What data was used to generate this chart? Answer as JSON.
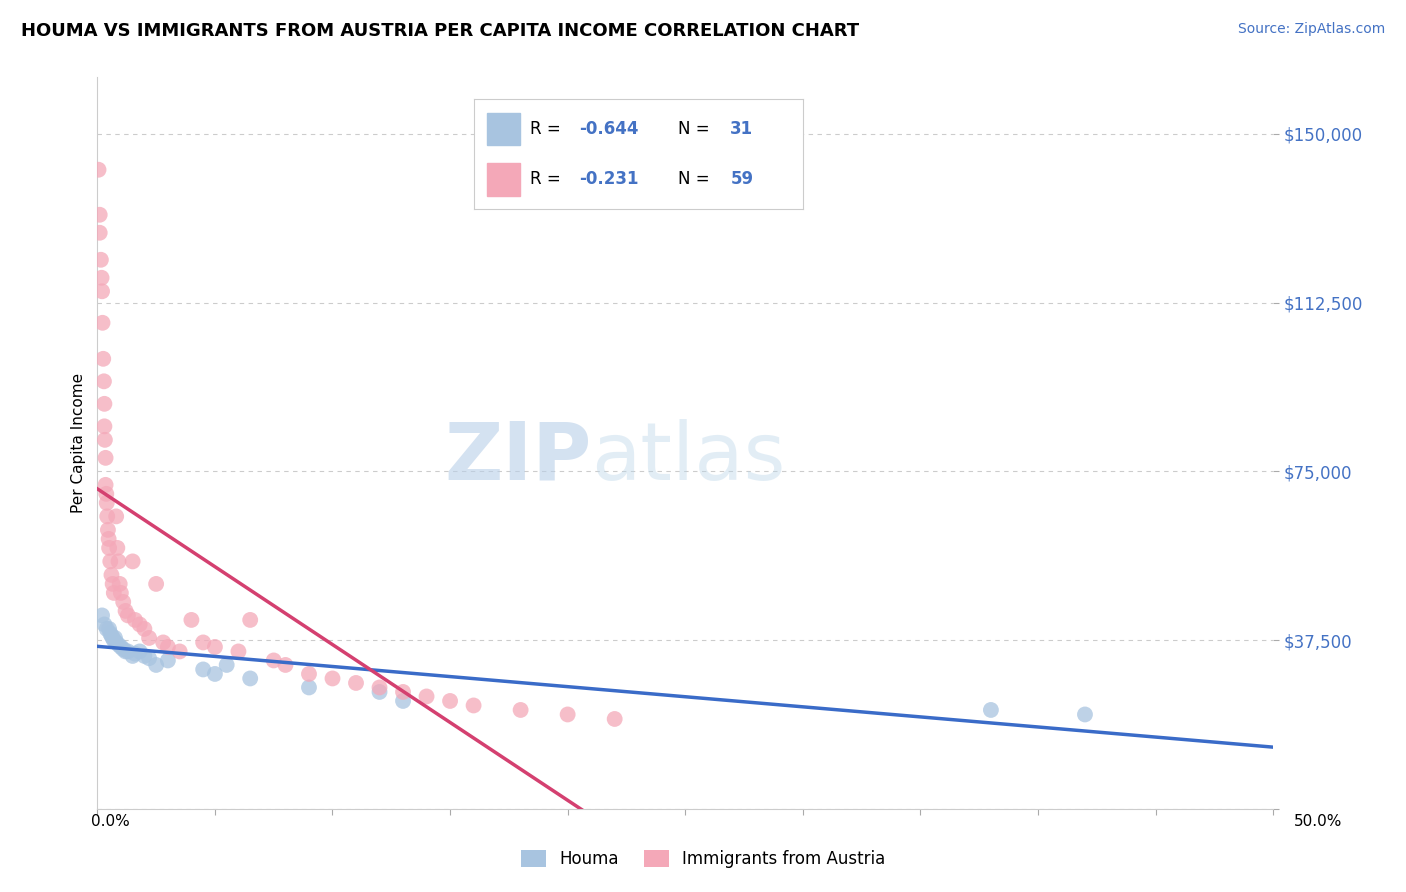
{
  "title": "HOUMA VS IMMIGRANTS FROM AUSTRIA PER CAPITA INCOME CORRELATION CHART",
  "source": "Source: ZipAtlas.com",
  "ylabel": "Per Capita Income",
  "yticks": [
    0,
    37500,
    75000,
    112500,
    150000
  ],
  "ytick_labels": [
    "",
    "$37,500",
    "$75,000",
    "$112,500",
    "$150,000"
  ],
  "xlim": [
    0.0,
    50.0
  ],
  "ylim": [
    0,
    162500
  ],
  "houma_color": "#a8c4e0",
  "austria_color": "#f4a8b8",
  "houma_line_color": "#3a6bc8",
  "austria_line_color": "#d44070",
  "legend_R1": "-0.644",
  "legend_N1": "31",
  "legend_R2": "-0.231",
  "legend_N2": "59",
  "legend_color1": "#a8c4e0",
  "legend_color2": "#f4a8b8",
  "legend_text_color": "#4472c4",
  "bottom_legend": [
    "Houma",
    "Immigrants from Austria"
  ],
  "houma_x": [
    0.2,
    0.3,
    0.4,
    0.5,
    0.55,
    0.6,
    0.65,
    0.7,
    0.75,
    0.8,
    0.9,
    1.0,
    1.1,
    1.2,
    1.3,
    1.5,
    1.6,
    1.8,
    2.0,
    2.2,
    2.5,
    3.0,
    4.5,
    5.0,
    5.5,
    6.5,
    9.0,
    12.0,
    13.0,
    38.0,
    42.0
  ],
  "houma_y": [
    43000,
    41000,
    40000,
    40000,
    39000,
    38500,
    38000,
    37500,
    38000,
    37000,
    36500,
    36000,
    35500,
    35000,
    35000,
    34000,
    34500,
    35000,
    34000,
    33500,
    32000,
    33000,
    31000,
    30000,
    32000,
    29000,
    27000,
    26000,
    24000,
    22000,
    21000
  ],
  "austria_x": [
    0.05,
    0.1,
    0.1,
    0.15,
    0.18,
    0.2,
    0.22,
    0.25,
    0.28,
    0.3,
    0.3,
    0.32,
    0.35,
    0.35,
    0.38,
    0.4,
    0.42,
    0.45,
    0.48,
    0.5,
    0.55,
    0.6,
    0.65,
    0.7,
    0.8,
    0.85,
    0.9,
    0.95,
    1.0,
    1.1,
    1.2,
    1.3,
    1.5,
    1.6,
    1.8,
    2.0,
    2.2,
    2.5,
    2.8,
    3.0,
    3.5,
    4.0,
    4.5,
    5.0,
    6.0,
    6.5,
    7.5,
    8.0,
    9.0,
    10.0,
    11.0,
    12.0,
    13.0,
    14.0,
    15.0,
    16.0,
    18.0,
    20.0,
    22.0
  ],
  "austria_y": [
    142000,
    132000,
    128000,
    122000,
    118000,
    115000,
    108000,
    100000,
    95000,
    90000,
    85000,
    82000,
    78000,
    72000,
    70000,
    68000,
    65000,
    62000,
    60000,
    58000,
    55000,
    52000,
    50000,
    48000,
    65000,
    58000,
    55000,
    50000,
    48000,
    46000,
    44000,
    43000,
    55000,
    42000,
    41000,
    40000,
    38000,
    50000,
    37000,
    36000,
    35000,
    42000,
    37000,
    36000,
    35000,
    42000,
    33000,
    32000,
    30000,
    29000,
    28000,
    27000,
    26000,
    25000,
    24000,
    23000,
    22000,
    21000,
    20000
  ]
}
